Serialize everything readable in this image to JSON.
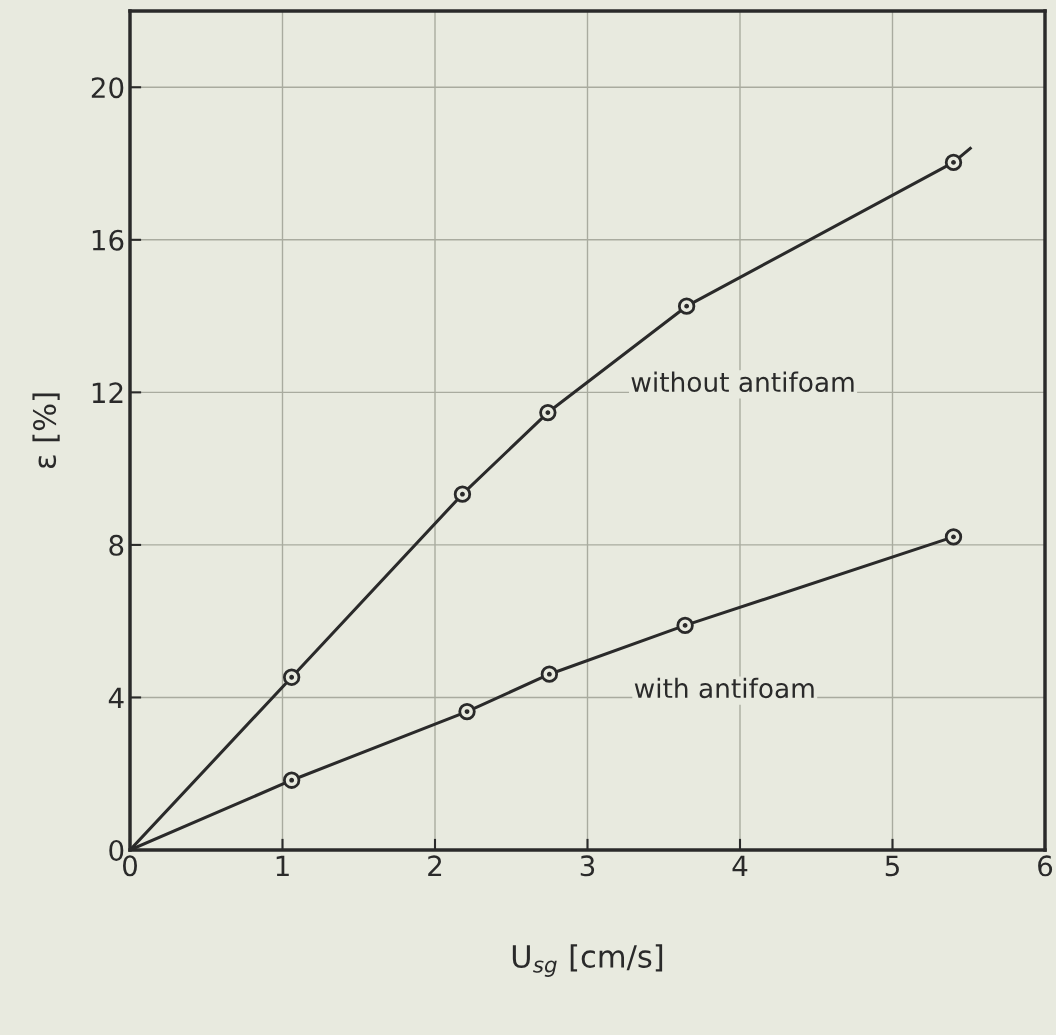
{
  "chart_data": {
    "type": "scatter",
    "xlabel": "U$_{sg}$ [cm/s]",
    "ylabel": "ε [%]",
    "xlim": [
      0,
      6
    ],
    "ylim": [
      0,
      22
    ],
    "xticks": [
      0,
      1,
      2,
      3,
      4,
      5,
      6
    ],
    "yticks": [
      0,
      4,
      8,
      12,
      16,
      20
    ],
    "grid": true,
    "marker": "circle",
    "series": [
      {
        "type": "line",
        "color": "#2a2a2a",
        "x": [
          0,
          1.06,
          2.18,
          2.74,
          3.65,
          5.4,
          5.51
        ],
        "values": [
          0,
          4.53,
          9.33,
          11.47,
          14.26,
          18.03,
          18.4
        ]
      },
      {
        "type": "line",
        "color": "#2a2a2a",
        "x": [
          0,
          1.06,
          2.21,
          2.75,
          3.64,
          5.4
        ],
        "values": [
          0,
          1.83,
          3.63,
          4.61,
          5.89,
          8.21
        ]
      },
      {
        "color": "#2a2a2a",
        "x": [
          1.06,
          2.18,
          2.74,
          3.65,
          5.4
        ],
        "values": [
          4.53,
          9.33,
          11.47,
          14.26,
          18.03
        ]
      },
      {
        "color": "#2a2a2a",
        "x": [
          1.06,
          2.21,
          2.75,
          3.64,
          5.4
        ],
        "values": [
          1.83,
          3.63,
          4.61,
          5.89,
          8.21
        ]
      }
    ],
    "annotations": [
      "without antifoam",
      "with antifoam"
    ]
  }
}
